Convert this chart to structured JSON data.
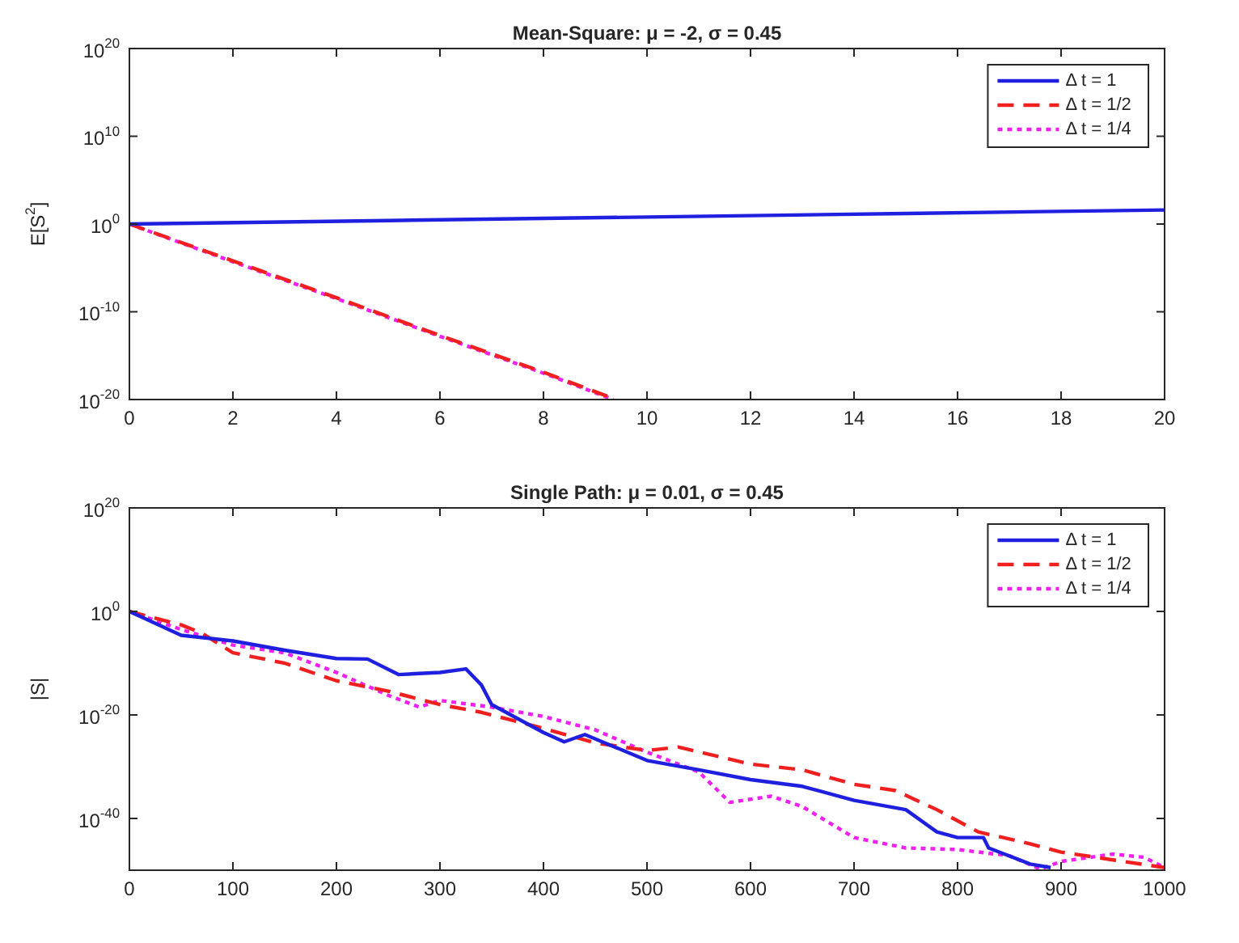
{
  "chart_data": [
    {
      "type": "line",
      "title": "Mean-Square: μ = -2, σ = 0.45",
      "ylabel": "E[S$^{2}$]",
      "log": "y",
      "legend": "top right",
      "grid": false,
      "xlim": [
        0,
        20
      ],
      "xticks": [
        0,
        2,
        4,
        6,
        8,
        10,
        12,
        14,
        16,
        18,
        20
      ],
      "ylim": [
        1e-20,
        1e+20
      ],
      "yticks": [
        {
          "value": 1e-20,
          "label": "10$^{-20}$"
        },
        {
          "value": 1e-10,
          "label": "10$^{-10}$"
        },
        {
          "value": 1,
          "label": "10$^{0}$"
        },
        {
          "value": 10000000000.0,
          "label": "10$^{10}$"
        },
        {
          "value": 1e+20,
          "label": "10$^{20}$"
        }
      ],
      "series": [
        {
          "name": "Δ t = 1",
          "color": "#1f1fe0",
          "line_style": "solid",
          "x": [
            0,
            5,
            10,
            15,
            20
          ],
          "values": [
            1,
            2.5,
            6.3,
            16,
            40
          ]
        },
        {
          "name": "Δ t = 1/2",
          "color": "#f02020",
          "line_style": "dashed",
          "x": [
            0,
            2,
            4,
            6,
            8,
            9.4
          ],
          "values": [
            1,
            6.3e-05,
            4e-09,
            2e-13,
            1.3e-17,
            1e-20
          ]
        },
        {
          "name": "Δ t = 1/4",
          "color": "#f020f0",
          "line_style": "dotted",
          "x": [
            0,
            2,
            4,
            6,
            8,
            9.35
          ],
          "values": [
            1,
            5e-05,
            3.2e-09,
            1.6e-13,
            1e-17,
            1e-20
          ]
        }
      ]
    },
    {
      "type": "line",
      "title": "Single Path: μ = 0.01, σ = 0.45",
      "ylabel": "|S|",
      "log": "y",
      "legend": "top right",
      "grid": false,
      "xlim": [
        0,
        1000
      ],
      "xticks": [
        0,
        100,
        200,
        300,
        400,
        500,
        600,
        700,
        800,
        900,
        1000
      ],
      "ylim": [
        1e-50,
        1e+20
      ],
      "yticks": [
        {
          "value": 1e-40,
          "label": "10$^{-40}$"
        },
        {
          "value": 1e-20,
          "label": "10$^{-20}$"
        },
        {
          "value": 1,
          "label": "10$^{0}$"
        },
        {
          "value": 1e+20,
          "label": "10$^{20}$"
        }
      ],
      "series": [
        {
          "name": "Δ t = 1",
          "color": "#1f1fe0",
          "line_style": "solid",
          "x": [
            0,
            50,
            100,
            150,
            200,
            230,
            260,
            300,
            325,
            340,
            350,
            400,
            420,
            440,
            500,
            550,
            600,
            650,
            700,
            750,
            780,
            800,
            825,
            830,
            870,
            890
          ],
          "values": [
            1,
            2.5e-05,
            2e-06,
            3.2e-08,
            7.9e-10,
            6.3e-10,
            6.3e-13,
            1.6e-12,
            7.9e-12,
            6.3e-15,
            1e-18,
            4e-24,
            6.3e-26,
            1.6e-24,
            1.6e-29,
            2.5e-31,
            3.2e-33,
            1.6e-34,
            3.2e-37,
            5e-39,
            2.5e-43,
            2e-44,
            2e-44,
            2e-46,
            1.6e-49,
            3.2e-50
          ]
        },
        {
          "name": "Δ t = 1/2",
          "color": "#f02020",
          "line_style": "dashed",
          "x": [
            0,
            50,
            70,
            100,
            150,
            200,
            250,
            300,
            340,
            400,
            450,
            500,
            530,
            600,
            650,
            700,
            740,
            780,
            820,
            870,
            900,
            950,
            1000
          ],
          "values": [
            1,
            0.0025,
            6.3e-05,
            1e-08,
            1e-10,
            4e-14,
            4e-16,
            1e-18,
            3.2e-20,
            2.5e-23,
            4e-26,
            1.3e-27,
            6.3e-27,
            3.2e-30,
            2.5e-31,
            4e-34,
            2.5e-35,
            5e-39,
            2.5e-43,
            1.3e-45,
            3.2e-47,
            1e-48,
            3.2e-50
          ]
        },
        {
          "name": "Δ t = 1/4",
          "color": "#f020f0",
          "line_style": "dotted",
          "x": [
            0,
            50,
            100,
            150,
            200,
            250,
            280,
            300,
            350,
            400,
            450,
            500,
            550,
            580,
            620,
            650,
            700,
            750,
            800,
            850,
            880,
            900,
            950,
            980,
            1000
          ],
          "values": [
            1,
            0.00032,
            3.2e-07,
            1e-08,
            1.6e-12,
            6.3e-17,
            3.2e-19,
            6.3e-18,
            3.2e-19,
            5e-21,
            1.3e-23,
            6.3e-28,
            1e-31,
            1.3e-37,
            2e-36,
            2e-38,
            2e-44,
            2e-46,
            1e-46,
            6.3e-48,
            1.6e-50,
            5e-49,
            1.3e-47,
            3.2e-48,
            3.2e-50
          ]
        }
      ]
    }
  ]
}
